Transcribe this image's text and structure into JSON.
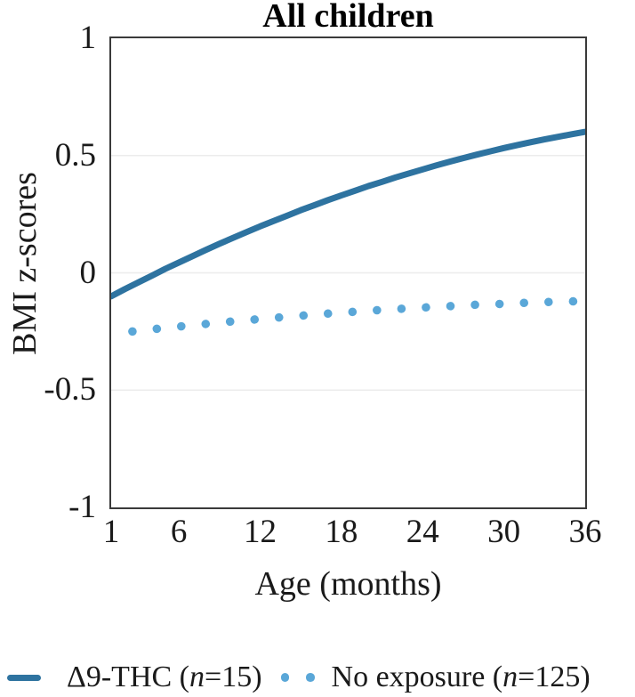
{
  "title": "All children",
  "y_axis": {
    "label": "BMI z-scores",
    "tick_labels": [
      "1",
      "0.5",
      "0",
      "-0.5",
      "-1"
    ]
  },
  "x_axis": {
    "label": "Age (months)",
    "tick_labels": [
      "1",
      "6",
      "12",
      "18",
      "24",
      "30",
      "36"
    ]
  },
  "legend": {
    "items": [
      {
        "swatch": "line",
        "prefix": "Δ9-THC (",
        "n": "n",
        "suffix": "=15)",
        "full": "Δ9-THC (n=15)"
      },
      {
        "swatch": "dots",
        "prefix": "No exposure (",
        "n": "n",
        "suffix": "=125)",
        "full": "No exposure (n=125)"
      }
    ]
  },
  "colors": {
    "thc_line": "#2e73a0",
    "no_exposure_dots": "#5aa7d8",
    "frame": "#3a3a3a",
    "grid": "#ececec",
    "text": "#1a1a1a"
  },
  "chart_data": {
    "type": "line",
    "title": "All children",
    "xlabel": "Age (months)",
    "ylabel": "BMI z-scores",
    "xlim": [
      1,
      36
    ],
    "ylim": [
      -1,
      1
    ],
    "x_ticks": [
      1,
      6,
      12,
      18,
      24,
      30,
      36
    ],
    "y_ticks": [
      1,
      0.5,
      0,
      -0.5,
      -1
    ],
    "grid": "horizontal",
    "legend_position": "bottom",
    "x": [
      1,
      2,
      3,
      4,
      5,
      6,
      7,
      8,
      9,
      10,
      11,
      12,
      13,
      14,
      15,
      16,
      17,
      18,
      19,
      20,
      21,
      22,
      23,
      24,
      25,
      26,
      27,
      28,
      29,
      30,
      31,
      32,
      33,
      34,
      35,
      36
    ],
    "series": [
      {
        "name": "Δ9-THC (n=15)",
        "style": "solid",
        "color": "#2e73a0",
        "stroke_width": 7,
        "values": [
          -0.1,
          -0.07,
          -0.041,
          -0.012,
          0.017,
          0.044,
          0.071,
          0.098,
          0.124,
          0.149,
          0.174,
          0.198,
          0.221,
          0.244,
          0.267,
          0.288,
          0.31,
          0.33,
          0.35,
          0.37,
          0.388,
          0.407,
          0.424,
          0.441,
          0.458,
          0.474,
          0.489,
          0.504,
          0.518,
          0.532,
          0.545,
          0.557,
          0.569,
          0.58,
          0.591,
          0.601
        ]
      },
      {
        "name": "No exposure (n=125)",
        "style": "dotted",
        "color": "#5aa7d8",
        "dot_size": 9.5,
        "dot_spacing": 27.5,
        "values": [
          -0.26,
          -0.254,
          -0.247,
          -0.241,
          -0.235,
          -0.229,
          -0.224,
          -0.218,
          -0.212,
          -0.207,
          -0.202,
          -0.197,
          -0.192,
          -0.187,
          -0.183,
          -0.178,
          -0.174,
          -0.17,
          -0.166,
          -0.162,
          -0.158,
          -0.155,
          -0.151,
          -0.148,
          -0.145,
          -0.142,
          -0.139,
          -0.136,
          -0.134,
          -0.132,
          -0.129,
          -0.127,
          -0.125,
          -0.123,
          -0.122,
          -0.12
        ]
      }
    ]
  }
}
